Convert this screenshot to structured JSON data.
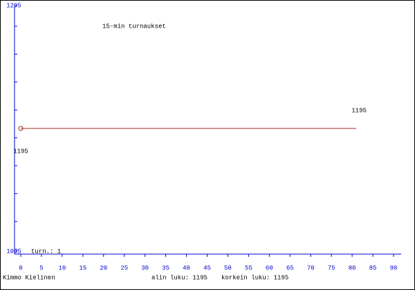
{
  "chart_data": {
    "type": "line",
    "title": "15-min turnaukset",
    "x": [
      0,
      81
    ],
    "series": [
      {
        "color": "#a03020",
        "values": [
          1195,
          1195
        ]
      }
    ],
    "xlim": [
      0,
      90
    ],
    "xticks": [
      0,
      5,
      10,
      15,
      20,
      25,
      30,
      35,
      40,
      45,
      50,
      55,
      60,
      65,
      70,
      75,
      80,
      85,
      90
    ],
    "ylim": [
      1095,
      1295
    ],
    "yticks": [
      1095,
      1295
    ],
    "axis_color": "#0000cc",
    "annotation": "turn.: 1",
    "author": "Kimmo Kielinen",
    "min_label": "alin luku: 1195",
    "max_label": "korkein luku: 1195"
  }
}
